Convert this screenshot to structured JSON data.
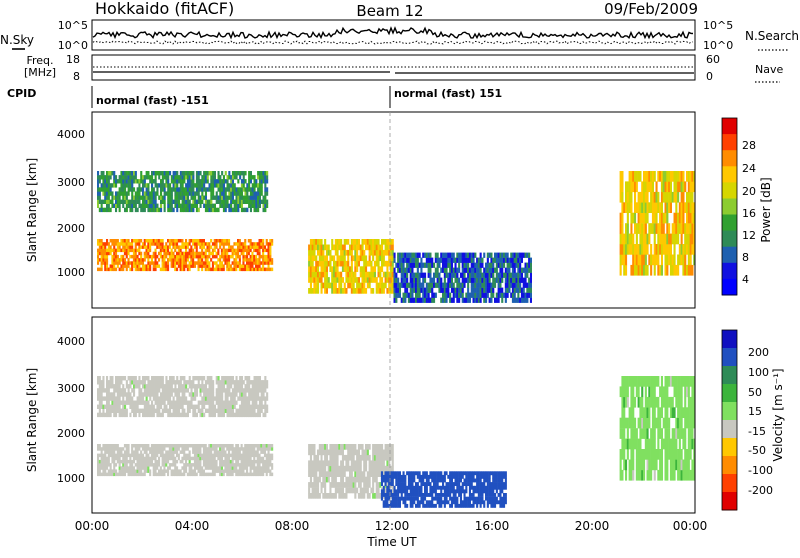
{
  "header": {
    "station": "Hokkaido (fitACF)",
    "beam": "Beam 12",
    "date": "09/Feb/2009"
  },
  "noise_panel": {
    "left_label": "N.Sky",
    "right_label": "N.Search",
    "left_ticks": [
      "10^5",
      "10^0"
    ],
    "right_ticks": [
      "10^5",
      "10^0"
    ]
  },
  "freq_panel": {
    "left_label_1": "Freq.",
    "left_label_2": "[MHz]",
    "left_ticks": [
      "18",
      "8"
    ],
    "right_label": "Nave",
    "right_ticks": [
      "60",
      "0"
    ]
  },
  "cpid_panel": {
    "label": "CPID",
    "mode_1": "normal (fast) -151",
    "mode_2": "normal (fast) 151"
  },
  "power_panel": {
    "ylabel": "Slant Range [km]",
    "yticks": [
      "4000",
      "3000",
      "2000",
      "1000"
    ],
    "colorbar_label": "Power [dB]",
    "colorbar_ticks": [
      "28",
      "24",
      "20",
      "16",
      "12",
      "8",
      "4"
    ],
    "colorbar_colors": [
      "#e00000",
      "#ff4000",
      "#ff8c00",
      "#ffc800",
      "#d6d600",
      "#8ccc30",
      "#30a030",
      "#2e8b57",
      "#1e60b0",
      "#1010e0",
      "#0000ff"
    ]
  },
  "velocity_panel": {
    "ylabel": "Slant Range [km]",
    "yticks": [
      "4000",
      "3000",
      "2000",
      "1000"
    ],
    "colorbar_label": "Velocity [m s⁻¹]",
    "colorbar_ticks": [
      "200",
      "100",
      "50",
      "15",
      "-15",
      "-50",
      "-100",
      "-200"
    ],
    "colorbar_colors": [
      "#1010c0",
      "#2050c0",
      "#2e8b57",
      "#3cb43c",
      "#80e060",
      "#c8c8c0",
      "#ffc800",
      "#ff8c00",
      "#ff4000",
      "#e00000"
    ]
  },
  "xaxis": {
    "xlabel": "Time UT",
    "ticks": [
      "00:00",
      "04:00",
      "08:00",
      "12:00",
      "16:00",
      "20:00",
      "00:00"
    ]
  },
  "chart_data": [
    {
      "type": "heatmap",
      "title": "Power [dB]",
      "xlabel": "Time UT",
      "ylabel": "Slant Range [km]",
      "xlim": [
        "00:00",
        "24:00"
      ],
      "ylim": [
        180,
        4500
      ],
      "colorbar": {
        "label": "Power [dB]",
        "range": [
          0,
          30
        ],
        "ticks": [
          4,
          8,
          12,
          16,
          20,
          24,
          28
        ]
      },
      "regions": [
        {
          "t": [
            0.2,
            7.2
          ],
          "range": [
            1000,
            1700
          ],
          "power_db": 24
        },
        {
          "t": [
            0.2,
            7.0
          ],
          "range": [
            2300,
            3200
          ],
          "power_db": 10
        },
        {
          "t": [
            8.6,
            12.0
          ],
          "range": [
            500,
            1700
          ],
          "power_db": 20
        },
        {
          "t": [
            12.0,
            17.5
          ],
          "range": [
            300,
            1400
          ],
          "power_db": 6
        },
        {
          "t": [
            21.0,
            24.0
          ],
          "range": [
            900,
            3200
          ],
          "power_db": 20
        }
      ]
    },
    {
      "type": "heatmap",
      "title": "Velocity [m s⁻¹]",
      "xlabel": "Time UT",
      "ylabel": "Slant Range [km]",
      "xlim": [
        "00:00",
        "24:00"
      ],
      "ylim": [
        180,
        4500
      ],
      "colorbar": {
        "label": "Velocity [m s⁻¹]",
        "range": [
          -200,
          200
        ],
        "ticks": [
          200,
          100,
          50,
          15,
          -15,
          -50,
          -100,
          -200
        ]
      },
      "regions": [
        {
          "t": [
            0.2,
            7.2
          ],
          "range": [
            1000,
            1700
          ],
          "velocity": 0
        },
        {
          "t": [
            0.2,
            7.0
          ],
          "range": [
            2300,
            3200
          ],
          "velocity": 0
        },
        {
          "t": [
            8.6,
            12.0
          ],
          "range": [
            500,
            1700
          ],
          "velocity": 0
        },
        {
          "t": [
            11.5,
            16.5
          ],
          "range": [
            300,
            1100
          ],
          "velocity": 150
        },
        {
          "t": [
            21.0,
            24.0
          ],
          "range": [
            900,
            3200
          ],
          "velocity": 30
        }
      ]
    }
  ]
}
